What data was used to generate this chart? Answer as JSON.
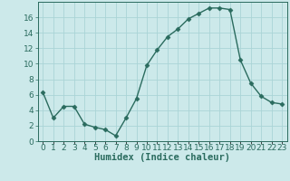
{
  "x": [
    0,
    1,
    2,
    3,
    4,
    5,
    6,
    7,
    8,
    9,
    10,
    11,
    12,
    13,
    14,
    15,
    16,
    17,
    18,
    19,
    20,
    21,
    22,
    23
  ],
  "y": [
    6.3,
    3.0,
    4.5,
    4.5,
    2.2,
    1.8,
    1.5,
    0.7,
    3.0,
    5.5,
    9.8,
    11.8,
    13.5,
    14.5,
    15.8,
    16.5,
    17.2,
    17.2,
    17.0,
    10.5,
    7.5,
    5.8,
    5.0,
    4.8
  ],
  "line_color": "#2a6b5e",
  "marker": "D",
  "marker_size": 2.5,
  "line_width": 1.0,
  "bg_color": "#cce9ea",
  "grid_color": "#aad4d6",
  "xlabel": "Humidex (Indice chaleur)",
  "xlabel_fontsize": 7.5,
  "ylim": [
    0,
    18
  ],
  "xlim": [
    -0.5,
    23.5
  ],
  "yticks": [
    0,
    2,
    4,
    6,
    8,
    10,
    12,
    14,
    16
  ],
  "xtick_labels": [
    "0",
    "1",
    "2",
    "3",
    "4",
    "5",
    "6",
    "7",
    "8",
    "9",
    "10",
    "11",
    "12",
    "13",
    "14",
    "15",
    "16",
    "17",
    "18",
    "19",
    "20",
    "21",
    "22",
    "23"
  ],
  "tick_fontsize": 6.5,
  "spine_color": "#2a6b5e"
}
